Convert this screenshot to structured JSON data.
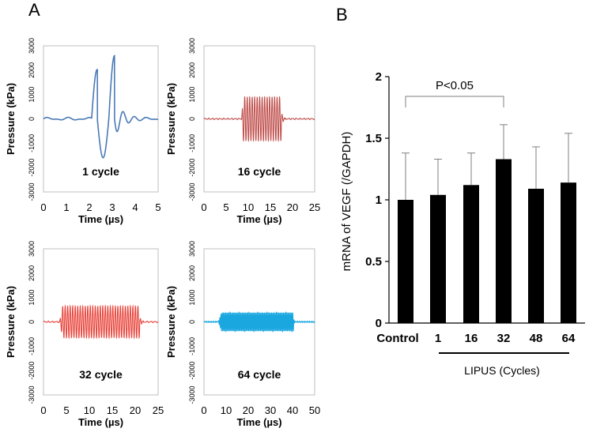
{
  "panel_a_letter": "A",
  "panel_b_letter": "B",
  "chart_data": [
    {
      "type": "line",
      "panel": "A1",
      "label": "1 cycle",
      "cycles": 1,
      "color": "#4a7ab5",
      "xlabel": "Time (µs)",
      "ylabel": "Pressure (kPa)",
      "xlim": [
        0,
        5
      ],
      "x_ticks": [
        "0",
        "1",
        "2",
        "3",
        "4",
        "5"
      ],
      "ylim": [
        -3000,
        3000
      ],
      "y_ticks": [
        "-3000",
        "-2000",
        "-1000",
        "0",
        "1000",
        "2000",
        "3000"
      ],
      "burst_start": 2.1,
      "burst_end": 3.6,
      "peak_positive": 2600,
      "peak_negative": -1600
    },
    {
      "type": "line",
      "panel": "A2",
      "label": "16 cycle",
      "cycles": 16,
      "color": "#c0504d",
      "xlabel": "Time (µs)",
      "ylabel": "Pressure (kPa)",
      "xlim": [
        0,
        25
      ],
      "x_ticks": [
        "0",
        "5",
        "10",
        "15",
        "20",
        "25"
      ],
      "ylim": [
        -3000,
        3000
      ],
      "y_ticks": [
        "-3000",
        "-2000",
        "-1000",
        "0",
        "1000",
        "2000",
        "3000"
      ],
      "burst_start": 8.5,
      "burst_end": 17.5,
      "amplitude": 900
    },
    {
      "type": "line",
      "panel": "A3",
      "label": "32 cycle",
      "cycles": 32,
      "color": "#e8453c",
      "xlabel": "Time (µs)",
      "ylabel": "Pressure (kPa)",
      "xlim": [
        0,
        25
      ],
      "x_ticks": [
        "0",
        "5",
        "10",
        "15",
        "20",
        "25"
      ],
      "ylim": [
        -3000,
        3000
      ],
      "y_ticks": [
        "-3000",
        "-2000",
        "-1000",
        "0",
        "1000",
        "2000",
        "3000"
      ],
      "burst_start": 3.5,
      "burst_end": 21,
      "amplitude": 650
    },
    {
      "type": "line",
      "panel": "A4",
      "label": "64 cycle",
      "cycles": 64,
      "color": "#1aa7e0",
      "xlabel": "Time (µs)",
      "ylabel": "Pressure (kPa)",
      "xlim": [
        0,
        50
      ],
      "x_ticks": [
        "0",
        "10",
        "20",
        "30",
        "40",
        "50"
      ],
      "ylim": [
        -3000,
        3000
      ],
      "y_ticks": [
        "-3000",
        "-2000",
        "-1000",
        "0",
        "1000",
        "2000",
        "3000"
      ],
      "burst_start": 6.5,
      "burst_end": 40.5,
      "amplitude": 380
    },
    {
      "type": "bar",
      "panel": "B",
      "categories": [
        "Control",
        "1",
        "16",
        "32",
        "48",
        "64"
      ],
      "values": [
        1.0,
        1.04,
        1.12,
        1.33,
        1.09,
        1.14
      ],
      "errors_upper": [
        0.38,
        0.29,
        0.26,
        0.28,
        0.34,
        0.4
      ],
      "ylabel": "mRNA of VEGF  (/GAPDH)",
      "ylim": [
        0,
        2
      ],
      "y_ticks": [
        "0",
        "0.5",
        "1",
        "1.5",
        "2"
      ],
      "bar_color": "#000000",
      "significance_label": "P<0.05",
      "significance_between": [
        "Control",
        "32"
      ],
      "group_label": "LIPUS (Cycles)"
    }
  ]
}
